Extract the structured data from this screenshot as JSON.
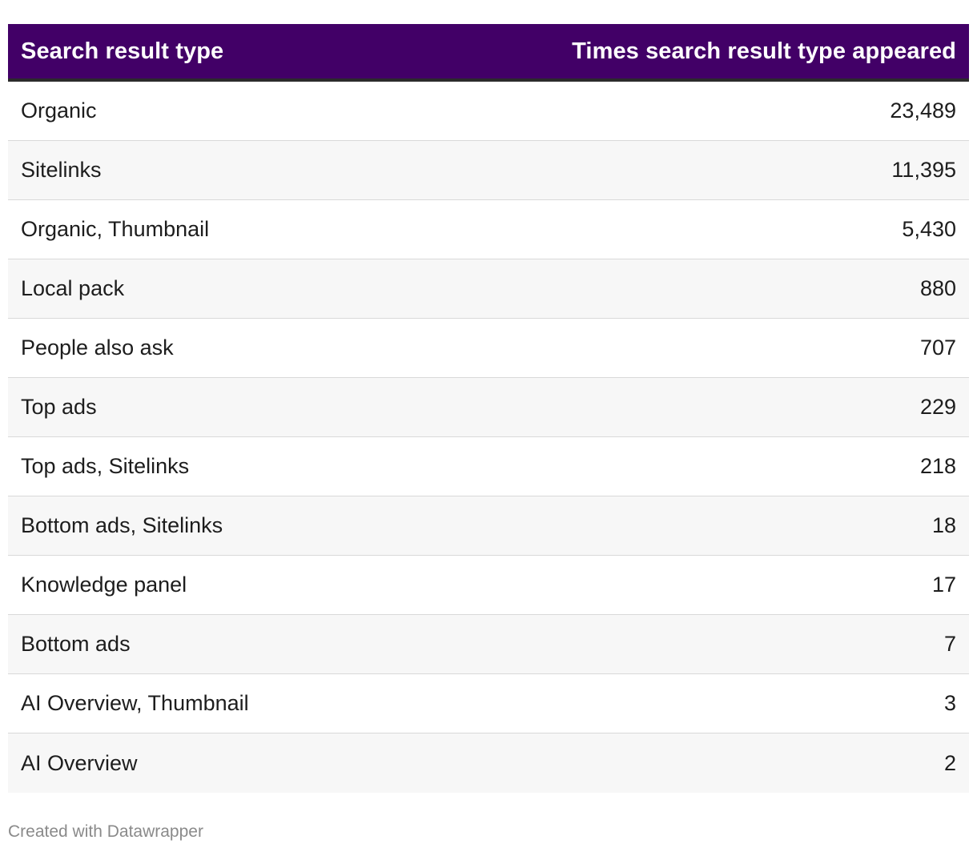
{
  "chart_data": {
    "type": "table",
    "columns": [
      "Search result type",
      "Times search result type appeared"
    ],
    "rows": [
      {
        "type": "Organic",
        "value": "23,489"
      },
      {
        "type": "Sitelinks",
        "value": "11,395"
      },
      {
        "type": "Organic, Thumbnail",
        "value": "5,430"
      },
      {
        "type": "Local pack",
        "value": "880"
      },
      {
        "type": "People also ask",
        "value": "707"
      },
      {
        "type": "Top ads",
        "value": "229"
      },
      {
        "type": "Top ads, Sitelinks",
        "value": "218"
      },
      {
        "type": "Bottom ads, Sitelinks",
        "value": "18"
      },
      {
        "type": "Knowledge panel",
        "value": "17"
      },
      {
        "type": "Bottom ads",
        "value": "7"
      },
      {
        "type": "AI Overview, Thumbnail",
        "value": "3"
      },
      {
        "type": "AI Overview",
        "value": "2"
      }
    ],
    "header_color": "#420067",
    "stripe_color": "#f7f7f7"
  },
  "footer": {
    "credit": "Created with Datawrapper"
  }
}
